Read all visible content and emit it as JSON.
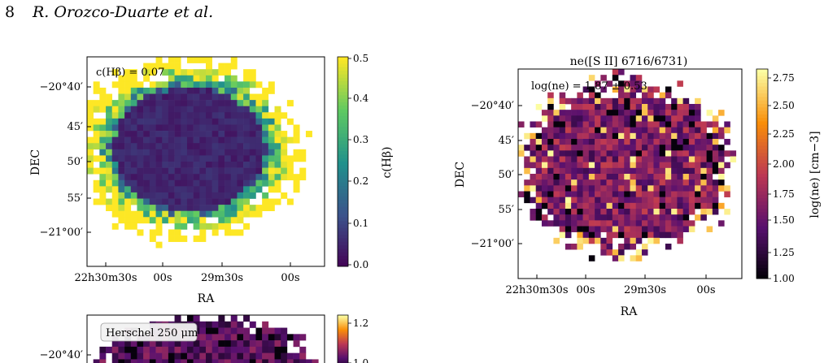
{
  "header": {
    "page_number": "8",
    "authors": "R. Orozco-Duarte et al."
  },
  "panels": [
    {
      "id": "chb",
      "title": "",
      "annotation": "c(Hβ) = 0.07",
      "xlabel": "RA",
      "ylabel": "DEC",
      "xticks": [
        "22h30m30s",
        "00s",
        "29m30s",
        "00s"
      ],
      "yticks": [
        "−20°40′",
        "45′",
        "50′",
        "55′",
        "−21°00′"
      ],
      "colorbar": {
        "label": "c(Hβ)",
        "ticks": [
          "0.0",
          "0.1",
          "0.2",
          "0.3",
          "0.4",
          "0.5"
        ],
        "range": [
          0,
          0.5
        ],
        "cmap": "viridis"
      }
    },
    {
      "id": "ne",
      "title": "ne([S II] 6716/6731)",
      "annotation": "log(ne) = 1.87 ± 0.53",
      "xlabel": "RA",
      "ylabel": "DEC",
      "xticks": [
        "22h30m30s",
        "00s",
        "29m30s",
        "00s"
      ],
      "yticks": [
        "−20°40′",
        "45′",
        "50′",
        "55′",
        "−21°00′"
      ],
      "colorbar": {
        "label": "log(ne) [cm−3]",
        "ticks": [
          "1.00",
          "1.25",
          "1.50",
          "1.75",
          "2.00",
          "2.25",
          "2.50",
          "2.75"
        ],
        "range": [
          1.0,
          2.8
        ],
        "cmap": "inferno"
      }
    },
    {
      "id": "herschel",
      "title": "",
      "annotation": "Herschel 250 μm",
      "ylabel": "",
      "yticks": [
        "−20°40′"
      ],
      "colorbar": {
        "label": "",
        "ticks": [
          "1.2",
          "1.0"
        ],
        "range": [
          0.95,
          1.25
        ],
        "cmap": "inferno"
      }
    }
  ]
}
